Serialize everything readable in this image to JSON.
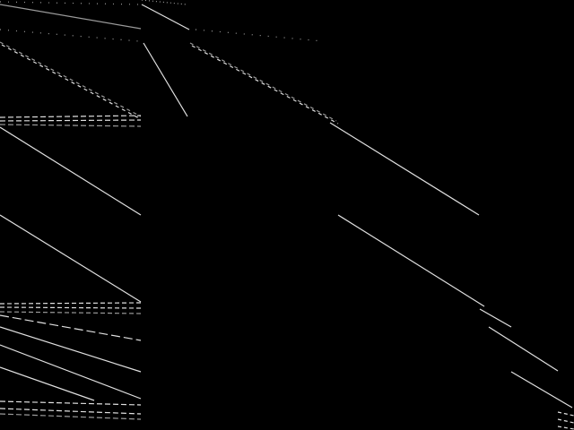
{
  "colors": {
    "background": "#000000",
    "line": "#e0e0e0",
    "line_dim": "#9a9a9a"
  }
}
